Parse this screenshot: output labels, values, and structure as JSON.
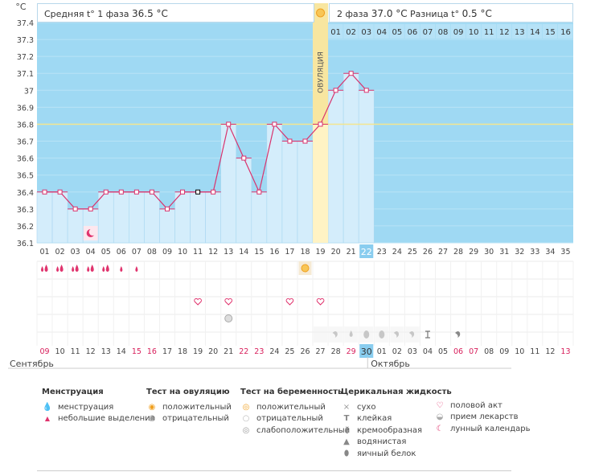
{
  "header": {
    "phase1_label": "Средняя t° 1 фаза",
    "phase1_value": "36.5 °C",
    "phase2_label": "2 фаза",
    "phase2_value": "37.0 °C",
    "diff_label": "Разница t°",
    "diff_value": "0.5 °C"
  },
  "chart_data": {
    "type": "line",
    "title": "",
    "ylabel": "°C",
    "ylim": [
      36.1,
      37.4
    ],
    "yticks": [
      36.1,
      36.2,
      36.3,
      36.4,
      36.5,
      36.6,
      36.7,
      36.8,
      36.9,
      37,
      37.1,
      37.2,
      37.3,
      37.4
    ],
    "cycle_days": [
      "01",
      "02",
      "03",
      "04",
      "05",
      "06",
      "07",
      "08",
      "09",
      "10",
      "11",
      "12",
      "13",
      "14",
      "15",
      "16",
      "17",
      "18",
      "19",
      "20",
      "21",
      "22",
      "23",
      "24",
      "25",
      "26",
      "27",
      "28",
      "29",
      "30",
      "31",
      "32",
      "33",
      "34",
      "35"
    ],
    "series": [
      {
        "values": [
          36.4,
          36.4,
          36.3,
          36.3,
          36.4,
          36.4,
          36.4,
          36.4,
          36.3,
          36.4,
          36.4,
          36.4,
          36.8,
          36.6,
          36.4,
          36.8,
          36.7,
          36.7,
          36.8,
          37.0,
          37.1,
          37.0
        ]
      }
    ],
    "coverline": 36.8,
    "ovulation_day": 19,
    "ovulation_label": "ОВУЛЯЦИЯ",
    "post_ovulation_days": [
      "01",
      "02",
      "03",
      "04",
      "05",
      "06",
      "07",
      "08",
      "09",
      "10",
      "11",
      "12",
      "13",
      "14",
      "15",
      "16"
    ],
    "current_day": 22,
    "calendar_dates": [
      "09",
      "10",
      "11",
      "12",
      "13",
      "14",
      "15",
      "16",
      "17",
      "18",
      "19",
      "20",
      "21",
      "22",
      "23",
      "24",
      "25",
      "26",
      "27",
      "28",
      "29",
      "30",
      "01",
      "02",
      "03",
      "04",
      "05",
      "06",
      "07",
      "08",
      "09",
      "10",
      "11",
      "12",
      "13"
    ],
    "weekend_dates_idx": [
      0,
      6,
      7,
      13,
      14,
      20,
      21,
      27,
      28,
      34
    ],
    "month_left": "Сентябрь",
    "month_right": "Октябрь",
    "rows": {
      "menstruation_heavy": [
        1,
        2,
        3,
        4,
        5
      ],
      "menstruation_light": [
        6,
        7
      ],
      "moon": [
        4
      ],
      "ovulation_test_positive": [
        18
      ],
      "intercourse": [
        11,
        13,
        17,
        19
      ],
      "medication": [
        13
      ],
      "cervical_fluid": {
        "20": "creamy",
        "21": "watery",
        "22": "egg-white",
        "23": "egg-white",
        "24": "creamy",
        "25": "creamy",
        "26": "sticky",
        "28": "creamy"
      }
    },
    "colors": {
      "sky": "#9fd9f3",
      "bar": "#d4edfb",
      "line": "#d9336d",
      "ovulation": "#f8e6a0",
      "today": "#89cdef",
      "weekend": "#d81e5b"
    }
  },
  "legend": {
    "menstruation": {
      "title": "Менструация",
      "items": [
        "менструация",
        "небольшие выделения"
      ]
    },
    "ovulation_test": {
      "title": "Тест на овуляцию",
      "items": [
        "положительный",
        "отрицательный"
      ]
    },
    "pregnancy_test": {
      "title": "Тест на беременность",
      "items": [
        "положительный",
        "отрицательный",
        "слабоположительный"
      ]
    },
    "cervical": {
      "title": "Церикальная жидкость",
      "items": [
        "сухо",
        "клейкая",
        "кремообразная",
        "водянистая",
        "яичный белок"
      ]
    },
    "other": {
      "items": [
        "половой акт",
        "прием лекарств",
        "лунный календарь"
      ]
    }
  }
}
